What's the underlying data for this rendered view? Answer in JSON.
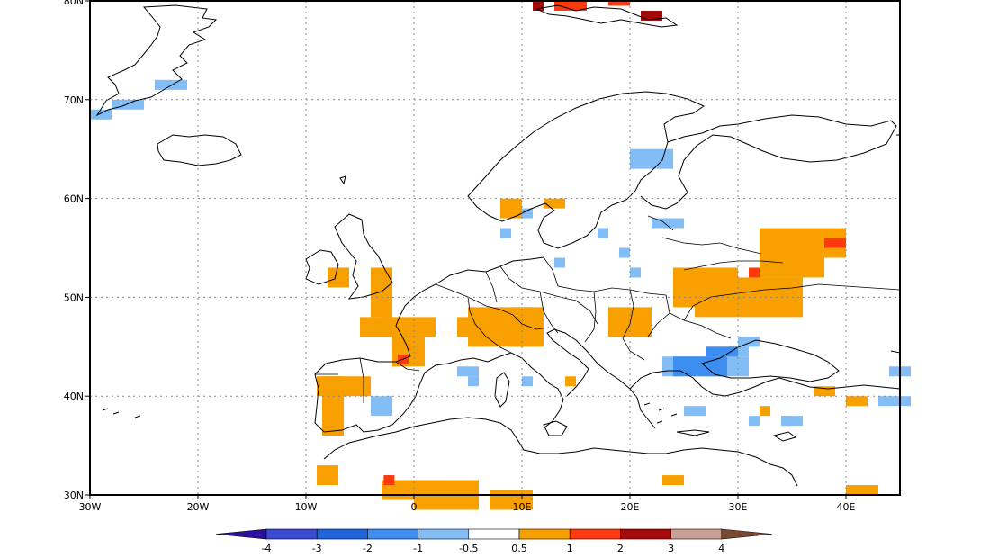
{
  "map": {
    "projection": "lat-lon",
    "extent": {
      "lon": [
        -30,
        45
      ],
      "lat": [
        30,
        80
      ]
    },
    "lat_ticks": [
      {
        "value": 30,
        "label": "30N"
      },
      {
        "value": 40,
        "label": "40N"
      },
      {
        "value": 50,
        "label": "50N"
      },
      {
        "value": 60,
        "label": "60N"
      },
      {
        "value": 70,
        "label": "70N"
      },
      {
        "value": 80,
        "label": "80N"
      }
    ],
    "lon_ticks": [
      {
        "value": -30,
        "label": "30W"
      },
      {
        "value": -20,
        "label": "20W"
      },
      {
        "value": -10,
        "label": "10W"
      },
      {
        "value": 0,
        "label": "0"
      },
      {
        "value": 10,
        "label": "10E"
      },
      {
        "value": 20,
        "label": "20E"
      },
      {
        "value": 30,
        "label": "30E"
      },
      {
        "value": 40,
        "label": "40E"
      }
    ],
    "gridlines": "dotted"
  },
  "colorbar": {
    "labels": [
      "-4",
      "-3",
      "-2",
      "-1",
      "-0.5",
      "0.5",
      "1",
      "2",
      "3",
      "4"
    ],
    "colors": [
      "#2b0f9e",
      "#3a4bd0",
      "#1f64d9",
      "#3c8ef0",
      "#83bdf5",
      "#ffffff",
      "#f8a000",
      "#fc3a0d",
      "#a50a0a",
      "#c8a096",
      "#7a4a30"
    ]
  },
  "anomaly_regions": [
    {
      "class": "pos1",
      "cells": [
        [
          -8,
          51,
          2,
          2
        ],
        [
          -4,
          48,
          2,
          5
        ],
        [
          -5,
          46,
          7,
          2
        ],
        [
          -2,
          43,
          3,
          3
        ],
        [
          -9,
          40,
          5,
          2
        ],
        [
          -8.5,
          36,
          2,
          6
        ],
        [
          -9,
          31,
          2,
          2
        ],
        [
          -3,
          29.5,
          6,
          2
        ],
        [
          0,
          28.5,
          6,
          3
        ],
        [
          7,
          28.5,
          4,
          2
        ],
        [
          4,
          46,
          5,
          2
        ],
        [
          5,
          45,
          6,
          4
        ],
        [
          9,
          45,
          3,
          4
        ],
        [
          18,
          46,
          4,
          3
        ],
        [
          24,
          49,
          6,
          4
        ],
        [
          26,
          48,
          10,
          4
        ],
        [
          32,
          52,
          6,
          5
        ],
        [
          30,
          49,
          6,
          2
        ],
        [
          38,
          54,
          2,
          3
        ],
        [
          37,
          40,
          2,
          1
        ],
        [
          40,
          39,
          2,
          1
        ],
        [
          32,
          38,
          1,
          1
        ],
        [
          34,
          37,
          1,
          1
        ],
        [
          14,
          41,
          1,
          1
        ],
        [
          -3,
          48,
          1,
          1
        ],
        [
          40,
          30,
          3,
          1
        ],
        [
          23,
          31,
          2,
          1
        ],
        [
          8,
          58,
          2,
          2
        ],
        [
          12,
          59,
          2,
          1
        ]
      ]
    },
    {
      "class": "pos2",
      "cells": [
        [
          -1.5,
          43.2,
          1,
          1
        ],
        [
          -2.8,
          31,
          1,
          1
        ],
        [
          31,
          52,
          1,
          1
        ],
        [
          38,
          55,
          2,
          1
        ],
        [
          13,
          79,
          3,
          1
        ],
        [
          18,
          79.5,
          2,
          1
        ]
      ]
    },
    {
      "class": "pos3",
      "cells": [
        [
          21,
          78,
          2,
          1
        ],
        [
          11,
          79,
          1,
          1
        ]
      ]
    },
    {
      "class": "neg1",
      "cells": [
        [
          -30,
          68,
          2,
          1
        ],
        [
          -28,
          69,
          3,
          1
        ],
        [
          -24,
          71,
          3,
          1
        ],
        [
          20,
          63,
          4,
          2
        ],
        [
          17,
          56,
          1,
          1
        ],
        [
          22,
          57,
          3,
          1
        ],
        [
          19,
          54,
          1,
          1
        ],
        [
          13,
          53,
          1,
          1
        ],
        [
          20,
          52,
          1,
          1
        ],
        [
          4,
          42,
          2,
          1
        ],
        [
          5,
          41,
          1,
          1
        ],
        [
          -4,
          38,
          2,
          2
        ],
        [
          10,
          41,
          1,
          1
        ],
        [
          23,
          42,
          8,
          2
        ],
        [
          29,
          44,
          2,
          1
        ],
        [
          30,
          45,
          2,
          1
        ],
        [
          31,
          37,
          1,
          1
        ],
        [
          25,
          38,
          2,
          1
        ],
        [
          34,
          37,
          2,
          1
        ],
        [
          43,
          39,
          3,
          1
        ],
        [
          44,
          42,
          2,
          1
        ],
        [
          10,
          58,
          1,
          1
        ],
        [
          8,
          56,
          1,
          1
        ]
      ]
    },
    {
      "class": "neg2",
      "cells": [
        [
          24,
          42,
          5,
          2
        ],
        [
          27,
          44,
          3,
          1
        ]
      ]
    }
  ]
}
